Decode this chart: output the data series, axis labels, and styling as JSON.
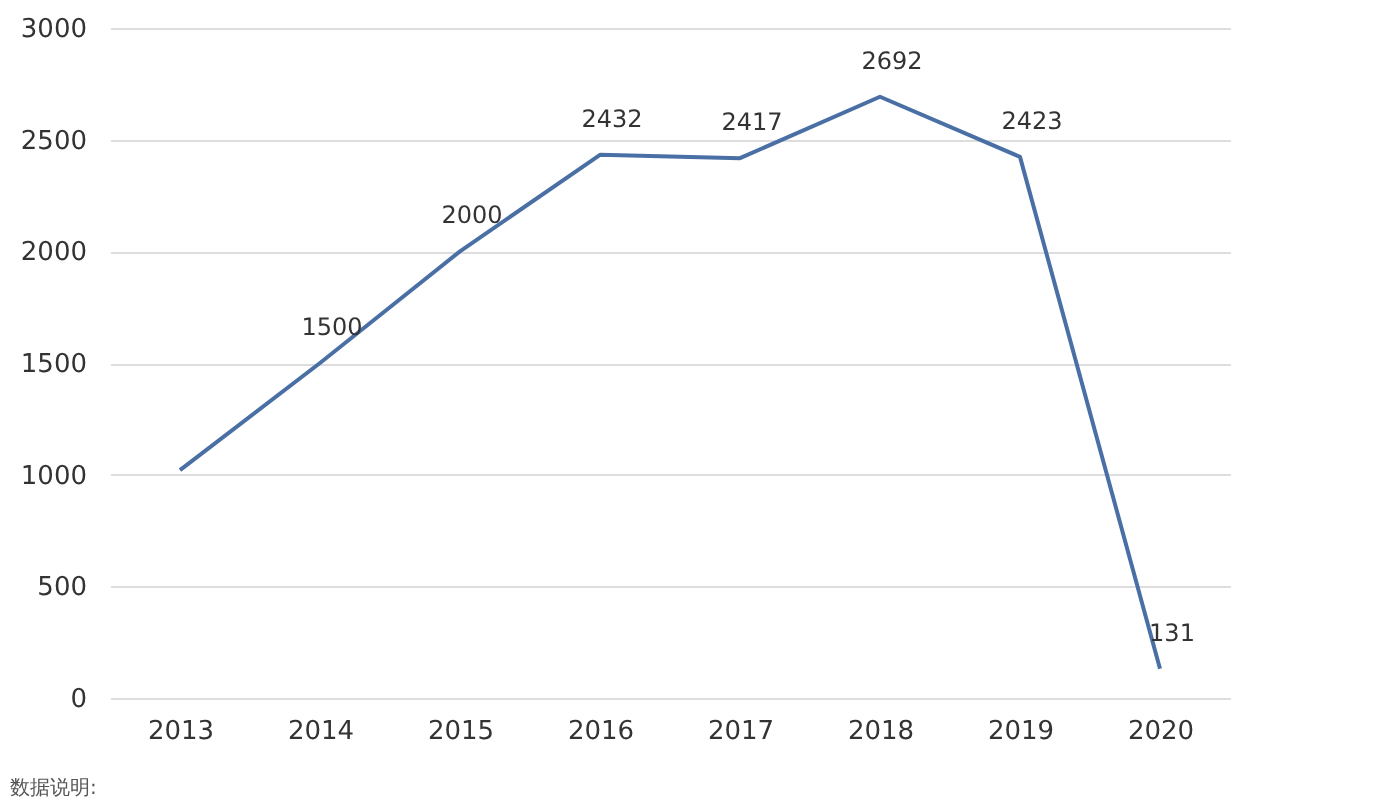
{
  "chart_data": {
    "type": "line",
    "categories": [
      "2013",
      "2014",
      "2015",
      "2016",
      "2017",
      "2018",
      "2019",
      "2020"
    ],
    "series": [
      {
        "color": "#4a6fa5",
        "values": [
          1020,
          1500,
          2000,
          2432,
          2417,
          2692,
          2423,
          131
        ],
        "value_labels": [
          null,
          "1500",
          "2000",
          "2432",
          "2417",
          "2692",
          "2423",
          "131"
        ]
      }
    ],
    "ylim": [
      0,
      3000
    ],
    "yticks": [
      0,
      500,
      1000,
      1500,
      2000,
      2500,
      3000
    ],
    "grid": "y",
    "marker": "none",
    "line_style": "solid",
    "annotations": [
      "数据说明:"
    ]
  }
}
